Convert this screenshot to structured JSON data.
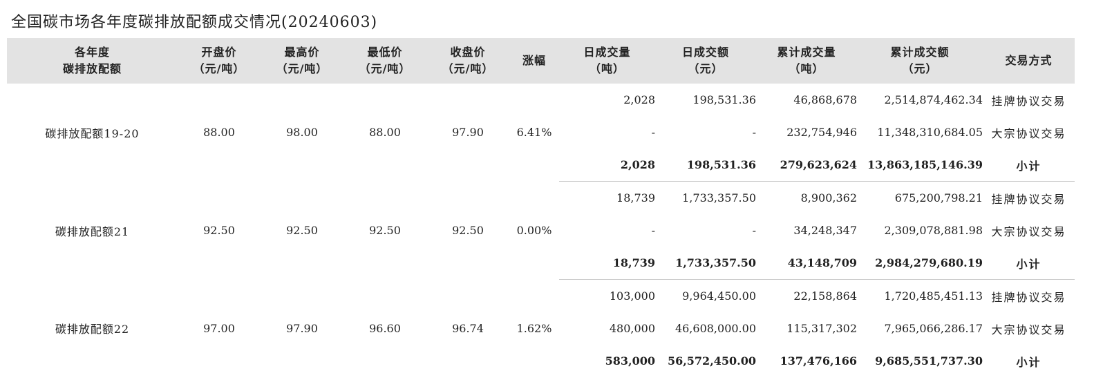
{
  "title": "全国碳市场各年度碳排放配额成交情况(20240603)",
  "headers": [
    [
      "各年度",
      "碳排放配额"
    ],
    [
      "开盘价",
      "（元/吨）"
    ],
    [
      "最高价",
      "（元/吨）"
    ],
    [
      "最低价",
      "（元/吨）"
    ],
    [
      "收盘价",
      "（元/吨）"
    ],
    [
      "涨幅"
    ],
    [
      "日成交量",
      "（吨）"
    ],
    [
      "日成交额",
      "（元）"
    ],
    [
      "累计成交量",
      "（吨）"
    ],
    [
      "累计成交额",
      "（元）"
    ],
    [
      "交易方式"
    ]
  ],
  "groups": [
    {
      "name": "碳排放配额19-20",
      "open": "88.00",
      "high": "98.00",
      "low": "88.00",
      "close": "97.90",
      "change": "6.41%",
      "rows": [
        {
          "daily_volume": "2,028",
          "daily_amount": "198,531.36",
          "cum_volume": "46,868,678",
          "cum_amount": "2,514,874,462.34",
          "method": "挂牌协议交易"
        },
        {
          "daily_volume": "-",
          "daily_amount": "-",
          "cum_volume": "232,754,946",
          "cum_amount": "11,348,310,684.05",
          "method": "大宗协议交易"
        },
        {
          "daily_volume": "2,028",
          "daily_amount": "198,531.36",
          "cum_volume": "279,623,624",
          "cum_amount": "13,863,185,146.39",
          "method": "小计"
        }
      ]
    },
    {
      "name": "碳排放配额21",
      "open": "92.50",
      "high": "92.50",
      "low": "92.50",
      "close": "92.50",
      "change": "0.00%",
      "rows": [
        {
          "daily_volume": "18,739",
          "daily_amount": "1,733,357.50",
          "cum_volume": "8,900,362",
          "cum_amount": "675,200,798.21",
          "method": "挂牌协议交易"
        },
        {
          "daily_volume": "-",
          "daily_amount": "-",
          "cum_volume": "34,248,347",
          "cum_amount": "2,309,078,881.98",
          "method": "大宗协议交易"
        },
        {
          "daily_volume": "18,739",
          "daily_amount": "1,733,357.50",
          "cum_volume": "43,148,709",
          "cum_amount": "2,984,279,680.19",
          "method": "小计"
        }
      ]
    },
    {
      "name": "碳排放配额22",
      "open": "97.00",
      "high": "97.90",
      "low": "96.60",
      "close": "96.74",
      "change": "1.62%",
      "rows": [
        {
          "daily_volume": "103,000",
          "daily_amount": "9,964,450.00",
          "cum_volume": "22,158,864",
          "cum_amount": "1,720,485,451.13",
          "method": "挂牌协议交易"
        },
        {
          "daily_volume": "480,000",
          "daily_amount": "46,608,000.00",
          "cum_volume": "115,317,302",
          "cum_amount": "7,965,066,286.17",
          "method": "大宗协议交易"
        },
        {
          "daily_volume": "583,000",
          "daily_amount": "56,572,450.00",
          "cum_volume": "137,476,166",
          "cum_amount": "9,685,551,737.30",
          "method": "小计"
        }
      ]
    }
  ]
}
